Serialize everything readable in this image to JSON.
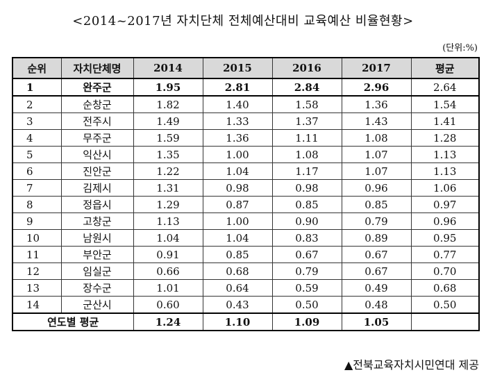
{
  "title": "<2014~2017년 자치단체 전체예산대비 교육예산 비율현황>",
  "unit": "(단위:%)",
  "headers": [
    "순위",
    "자치단체명",
    "2014",
    "2015",
    "2016",
    "2017",
    "평균"
  ],
  "rows": [
    {
      "rank": "1",
      "name": "완주군",
      "v2014": "1.95",
      "v2015": "2.81",
      "v2016": "2.84",
      "v2017": "2.96",
      "avg": "2.64"
    },
    {
      "rank": "2",
      "name": "순창군",
      "v2014": "1.82",
      "v2015": "1.40",
      "v2016": "1.58",
      "v2017": "1.36",
      "avg": "1.54"
    },
    {
      "rank": "3",
      "name": "전주시",
      "v2014": "1.49",
      "v2015": "1.33",
      "v2016": "1.37",
      "v2017": "1.43",
      "avg": "1.41"
    },
    {
      "rank": "4",
      "name": "무주군",
      "v2014": "1.59",
      "v2015": "1.36",
      "v2016": "1.11",
      "v2017": "1.08",
      "avg": "1.28"
    },
    {
      "rank": "5",
      "name": "익산시",
      "v2014": "1.35",
      "v2015": "1.00",
      "v2016": "1.08",
      "v2017": "1.07",
      "avg": "1.13"
    },
    {
      "rank": "6",
      "name": "진안군",
      "v2014": "1.22",
      "v2015": "1.04",
      "v2016": "1.17",
      "v2017": "1.07",
      "avg": "1.13"
    },
    {
      "rank": "7",
      "name": "김제시",
      "v2014": "1.31",
      "v2015": "0.98",
      "v2016": "0.98",
      "v2017": "0.96",
      "avg": "1.06"
    },
    {
      "rank": "8",
      "name": "정읍시",
      "v2014": "1.29",
      "v2015": "0.87",
      "v2016": "0.85",
      "v2017": "0.85",
      "avg": "0.97"
    },
    {
      "rank": "9",
      "name": "고창군",
      "v2014": "1.13",
      "v2015": "1.00",
      "v2016": "0.90",
      "v2017": "0.79",
      "avg": "0.96"
    },
    {
      "rank": "10",
      "name": "남원시",
      "v2014": "1.04",
      "v2015": "1.04",
      "v2016": "0.83",
      "v2017": "0.89",
      "avg": "0.95"
    },
    {
      "rank": "11",
      "name": "부안군",
      "v2014": "0.91",
      "v2015": "0.85",
      "v2016": "0.67",
      "v2017": "0.67",
      "avg": "0.77"
    },
    {
      "rank": "12",
      "name": "임실군",
      "v2014": "0.66",
      "v2015": "0.68",
      "v2016": "0.79",
      "v2017": "0.67",
      "avg": "0.70"
    },
    {
      "rank": "13",
      "name": "장수군",
      "v2014": "1.01",
      "v2015": "0.64",
      "v2016": "0.59",
      "v2017": "0.49",
      "avg": "0.68"
    },
    {
      "rank": "14",
      "name": "군산시",
      "v2014": "0.60",
      "v2015": "0.43",
      "v2016": "0.50",
      "v2017": "0.48",
      "avg": "0.50"
    }
  ],
  "footer": {
    "label": "연도별 평균",
    "v2014": "1.24",
    "v2015": "1.10",
    "v2016": "1.09",
    "v2017": "1.05",
    "avg": ""
  },
  "source": "▲전북교육자치시민연대 제공",
  "colors": {
    "header_bg": "#d9d9d9",
    "border": "#333333"
  }
}
